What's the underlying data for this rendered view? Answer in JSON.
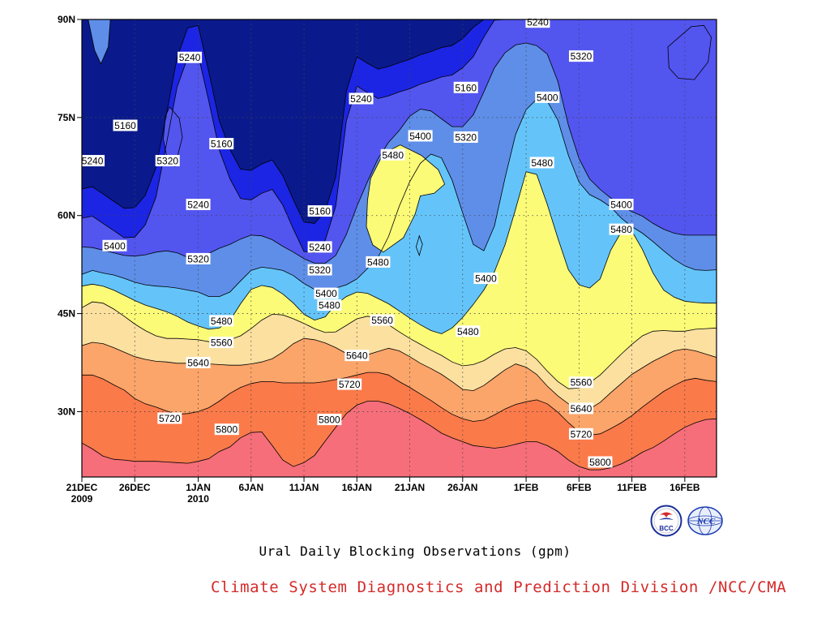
{
  "chart_data": {
    "type": "filled-contour",
    "title": "Ural Daily Blocking Observations (gpm)",
    "credit": "Climate System Diagnostics and Prediction Division /NCC/CMA",
    "credit_color": "#d42a2a",
    "x_ticks": [
      {
        "label": "21DEC",
        "sub": "2009"
      },
      {
        "label": "26DEC",
        "sub": ""
      },
      {
        "label": "1JAN",
        "sub": "2010"
      },
      {
        "label": "6JAN",
        "sub": ""
      },
      {
        "label": "11JAN",
        "sub": ""
      },
      {
        "label": "16JAN",
        "sub": ""
      },
      {
        "label": "21JAN",
        "sub": ""
      },
      {
        "label": "26JAN",
        "sub": ""
      },
      {
        "label": "1FEB",
        "sub": ""
      },
      {
        "label": "6FEB",
        "sub": ""
      },
      {
        "label": "11FEB",
        "sub": ""
      },
      {
        "label": "16FEB",
        "sub": ""
      }
    ],
    "y_ticks": [
      "90N",
      "75N",
      "60N",
      "45N",
      "30N"
    ],
    "x_days": [
      0,
      5,
      11,
      16,
      21,
      26,
      31,
      36,
      42,
      47,
      52,
      57
    ],
    "y_lats": [
      90,
      75,
      60,
      45,
      30
    ],
    "xlim_days": [
      0,
      60
    ],
    "ylim_lat": [
      20,
      90
    ],
    "grid": "dotted",
    "levels": [
      5240,
      5320,
      5400,
      5480,
      5560,
      5640,
      5720,
      5800
    ],
    "fill_colors": [
      "#0a1a8c",
      "#1c25e3",
      "#5355ef",
      "#5e8ee8",
      "#64c4fa",
      "#fbfb78",
      "#fbe0a0",
      "#fba56a",
      "#fb7a4a",
      "#f56e7a"
    ],
    "bands": [
      {
        "level": 5800,
        "lat": [
          25.2,
          24.3,
          23.2,
          22.7,
          22.6,
          22.4,
          22.4,
          22.4,
          22.3,
          22.2,
          22.1,
          22.4,
          22.8,
          23.9,
          24.6,
          26.0,
          26.8,
          26.9,
          24.8,
          22.6,
          21.6,
          22.2,
          23.3,
          25.5,
          27.6,
          29.7,
          31.0,
          31.6,
          31.6,
          31.2,
          30.5,
          29.7,
          28.8,
          27.8,
          26.7,
          26.0,
          25.4,
          24.8,
          24.6,
          24.4,
          24.6,
          25.0,
          25.4,
          25.4,
          24.8,
          23.9,
          22.6,
          21.6,
          21.1,
          21.1,
          21.4,
          22.0,
          22.8,
          23.8,
          24.5,
          25.5,
          26.6,
          27.6,
          28.3,
          28.8,
          28.9
        ]
      },
      {
        "level": 5720,
        "lat": [
          35.6,
          35.6,
          35.0,
          34.1,
          33.3,
          32.0,
          31.2,
          30.7,
          30.1,
          29.6,
          29.7,
          30.0,
          30.6,
          31.6,
          32.8,
          33.7,
          34.3,
          34.6,
          34.6,
          34.4,
          34.4,
          34.4,
          34.4,
          34.6,
          34.9,
          35.2,
          35.6,
          36.0,
          36.0,
          35.6,
          34.6,
          33.7,
          32.7,
          31.7,
          30.6,
          29.6,
          28.9,
          28.5,
          28.7,
          29.5,
          30.4,
          31.1,
          31.5,
          31.8,
          31.2,
          29.9,
          28.3,
          26.9,
          26.4,
          26.6,
          27.4,
          28.3,
          29.4,
          30.7,
          31.9,
          33.1,
          34.0,
          34.8,
          35.1,
          34.8,
          34.6
        ]
      },
      {
        "level": 5640,
        "lat": [
          40.1,
          40.6,
          40.4,
          39.8,
          39.1,
          38.4,
          38.0,
          37.7,
          37.6,
          37.4,
          37.4,
          37.4,
          37.3,
          37.2,
          37.1,
          37.1,
          37.3,
          37.6,
          38.1,
          39.1,
          40.4,
          41.2,
          41.0,
          40.5,
          39.8,
          38.9,
          38.4,
          38.7,
          39.2,
          39.7,
          39.3,
          38.4,
          37.4,
          36.6,
          35.7,
          34.6,
          33.4,
          33.2,
          34.0,
          35.2,
          36.4,
          37.3,
          36.8,
          35.7,
          33.9,
          32.4,
          31.2,
          30.4,
          30.4,
          31.4,
          32.9,
          34.3,
          35.7,
          36.7,
          37.7,
          38.5,
          39.3,
          39.6,
          39.3,
          38.8,
          38.3
        ]
      },
      {
        "level": 5560,
        "lat": [
          45.9,
          46.8,
          46.6,
          45.7,
          44.6,
          43.4,
          42.4,
          41.6,
          41.2,
          41.2,
          41.1,
          41.0,
          40.7,
          40.7,
          41.0,
          41.6,
          42.7,
          44.0,
          44.9,
          44.8,
          44.2,
          43.5,
          42.7,
          42.1,
          42.2,
          43.2,
          44.2,
          44.6,
          44.3,
          43.3,
          42.2,
          41.2,
          40.3,
          39.4,
          38.6,
          37.6,
          37.0,
          37.2,
          37.8,
          38.8,
          39.6,
          39.8,
          39.3,
          38.0,
          36.2,
          34.6,
          33.5,
          33.6,
          34.4,
          35.6,
          37.2,
          38.8,
          40.3,
          41.6,
          42.3,
          42.4,
          42.3,
          42.3,
          42.6,
          42.7,
          42.8
        ]
      },
      {
        "level": 5480,
        "lat": [
          49.2,
          49.5,
          49.2,
          48.6,
          47.8,
          47.0,
          46.3,
          45.8,
          45.3,
          44.6,
          43.7,
          43.1,
          42.6,
          42.8,
          43.9,
          46.5,
          48.7,
          49.3,
          49.0,
          48.0,
          46.6,
          44.9,
          44.0,
          44.5,
          46.4,
          47.6,
          48.3,
          48.1,
          47.3,
          46.5,
          45.4,
          44.3,
          43.3,
          42.4,
          41.9,
          42.8,
          44.4,
          46.4,
          48.6,
          51.4,
          55.5,
          61.0,
          66.7,
          66.3,
          61.7,
          56.5,
          51.7,
          49.4,
          48.9,
          50.3,
          54.7,
          57.5,
          57.6,
          54.8,
          51.2,
          48.6,
          47.5,
          46.9,
          46.7,
          46.6,
          46.6
        ]
      },
      {
        "level": 5400,
        "lat": [
          51.0,
          51.6,
          51.2,
          50.9,
          50.4,
          49.8,
          49.4,
          49.2,
          49.1,
          48.9,
          48.6,
          48.3,
          47.6,
          47.6,
          48.3,
          50.0,
          51.6,
          52.1,
          51.9,
          51.6,
          50.8,
          49.6,
          48.7,
          48.6,
          48.9,
          49.4,
          50.3,
          51.9,
          53.6,
          56.8,
          61.4,
          65.2,
          68.0,
          69.4,
          68.8,
          65.4,
          60.4,
          55.6,
          54.6,
          58.4,
          65.7,
          72.4,
          76.2,
          77.8,
          77.5,
          74.6,
          69.2,
          65.1,
          63.2,
          62.4,
          61.3,
          59.6,
          58.3,
          57.3,
          56.0,
          54.6,
          53.3,
          52.3,
          51.7,
          51.6,
          51.7
        ]
      },
      {
        "level": 5320,
        "lat": [
          55.2,
          55.1,
          54.7,
          54.3,
          53.9,
          53.8,
          54.0,
          54.4,
          54.6,
          54.3,
          53.6,
          53.3,
          54.2,
          55.0,
          55.6,
          56.4,
          57.0,
          56.9,
          56.3,
          55.3,
          54.4,
          53.4,
          52.7,
          52.7,
          53.9,
          57.1,
          61.4,
          65.2,
          68.7,
          71.2,
          73.0,
          75.2,
          76.3,
          76.0,
          74.8,
          73.6,
          73.6,
          75.4,
          78.9,
          82.6,
          84.9,
          86.1,
          86.4,
          86.0,
          84.7,
          80.5,
          73.8,
          68.7,
          65.6,
          64.0,
          62.7,
          61.5,
          60.6,
          59.9,
          58.8,
          57.9,
          57.3,
          57.0,
          57.0,
          57.0,
          57.0
        ]
      },
      {
        "level": 5240,
        "lat": [
          59.6,
          59.9,
          58.8,
          57.7,
          56.6,
          56.7,
          58.6,
          62.8,
          71.0,
          79.6,
          84.2,
          84.6,
          77.5,
          70.0,
          65.6,
          62.6,
          62.4,
          63.4,
          64.0,
          61.6,
          57.9,
          54.5,
          54.3,
          56.2,
          61.4,
          74.5,
          79.8,
          78.8,
          77.9,
          78.3,
          78.9,
          79.4,
          80.1,
          80.6,
          81.2,
          81.5,
          82.6,
          84.3,
          87.3,
          89.9,
          90.0,
          90.0,
          90.0,
          90.0,
          90.0,
          90.0,
          90.0,
          90.0,
          90.0,
          90.0,
          90.0,
          90.0,
          90.0,
          90.0,
          90.0,
          90.0,
          90.0,
          90.0,
          90.0,
          90.0,
          90.0
        ]
      }
    ],
    "annotations": [
      {
        "text": "5800",
        "day": 23.4,
        "lat": 28.8
      },
      {
        "text": "5800",
        "day": 13.7,
        "lat": 27.3
      },
      {
        "text": "5800",
        "day": 49.0,
        "lat": 22.3
      },
      {
        "text": "5720",
        "day": 8.3,
        "lat": 29.0
      },
      {
        "text": "5720",
        "day": 25.3,
        "lat": 34.2
      },
      {
        "text": "5720",
        "day": 47.2,
        "lat": 26.6
      },
      {
        "text": "5640",
        "day": 11.0,
        "lat": 37.5
      },
      {
        "text": "5640",
        "day": 26.0,
        "lat": 38.6
      },
      {
        "text": "5640",
        "day": 47.2,
        "lat": 30.5
      },
      {
        "text": "5560",
        "day": 13.2,
        "lat": 40.6
      },
      {
        "text": "5560",
        "day": 28.4,
        "lat": 44.0
      },
      {
        "text": "5560",
        "day": 47.2,
        "lat": 34.5
      },
      {
        "text": "5480",
        "day": 13.2,
        "lat": 43.9
      },
      {
        "text": "5480",
        "day": 23.4,
        "lat": 46.3
      },
      {
        "text": "5480",
        "day": 36.5,
        "lat": 42.3
      },
      {
        "text": "5480",
        "day": 28.0,
        "lat": 52.9
      },
      {
        "text": "5480",
        "day": 29.4,
        "lat": 69.3
      },
      {
        "text": "5480",
        "day": 43.5,
        "lat": 68.1
      },
      {
        "text": "5480",
        "day": 51.0,
        "lat": 57.9
      },
      {
        "text": "5400",
        "day": 3.1,
        "lat": 55.4
      },
      {
        "text": "5400",
        "day": 23.1,
        "lat": 48.1
      },
      {
        "text": "5400",
        "day": 32.0,
        "lat": 72.2
      },
      {
        "text": "5400",
        "day": 38.2,
        "lat": 50.4
      },
      {
        "text": "5400",
        "day": 44.0,
        "lat": 78.1
      },
      {
        "text": "5400",
        "day": 51.0,
        "lat": 61.7
      },
      {
        "text": "5320",
        "day": 8.1,
        "lat": 68.4
      },
      {
        "text": "5320",
        "day": 11.0,
        "lat": 53.4
      },
      {
        "text": "5320",
        "day": 22.5,
        "lat": 51.7
      },
      {
        "text": "5320",
        "day": 36.3,
        "lat": 72.0
      },
      {
        "text": "5320",
        "day": 47.2,
        "lat": 84.4
      },
      {
        "text": "5240",
        "day": 10.2,
        "lat": 84.2
      },
      {
        "text": "5240",
        "day": 1.0,
        "lat": 68.4
      },
      {
        "text": "5240",
        "day": 11.0,
        "lat": 61.7
      },
      {
        "text": "5240",
        "day": 22.5,
        "lat": 55.2
      },
      {
        "text": "5240",
        "day": 26.4,
        "lat": 77.9
      },
      {
        "text": "5240",
        "day": 43.1,
        "lat": 89.6
      },
      {
        "text": "5160",
        "day": 4.1,
        "lat": 73.8
      },
      {
        "text": "5160",
        "day": 13.2,
        "lat": 71.0
      },
      {
        "text": "5160",
        "day": 22.5,
        "lat": 60.7
      },
      {
        "text": "5160",
        "day": 36.3,
        "lat": 79.6
      }
    ],
    "lows": [
      {
        "fill": "#5355ef",
        "points": [
          [
            8.3,
            76.6
          ],
          [
            9.2,
            74.9
          ],
          [
            9.5,
            72.0
          ],
          [
            8.8,
            67.5
          ],
          [
            8.1,
            68.4
          ],
          [
            7.7,
            71.7
          ],
          [
            7.9,
            75.2
          ]
        ]
      },
      {
        "fill": "#5e8ee8",
        "points": [
          [
            0.6,
            90.0
          ],
          [
            2.7,
            90.0
          ],
          [
            2.5,
            85.8
          ],
          [
            1.8,
            83.2
          ],
          [
            1.2,
            85.3
          ]
        ]
      },
      {
        "fill": "#5355ef",
        "points": [
          [
            55.4,
            85.8
          ],
          [
            57.6,
            88.9
          ],
          [
            58.8,
            89.1
          ],
          [
            59.5,
            87.3
          ],
          [
            59.2,
            83.5
          ],
          [
            57.9,
            80.8
          ],
          [
            56.4,
            81.0
          ],
          [
            55.5,
            82.6
          ]
        ]
      },
      {
        "fill": "#64c4fa",
        "points": [
          [
            31.9,
            56.9
          ],
          [
            32.2,
            55.6
          ],
          [
            31.9,
            53.9
          ],
          [
            31.6,
            55.2
          ]
        ]
      }
    ],
    "yellow_core": [
      [
        27.3,
        65.7
      ],
      [
        28.5,
        69.5
      ],
      [
        30.1,
        70.8
      ],
      [
        32.1,
        69.2
      ],
      [
        33.7,
        67.0
      ],
      [
        34.3,
        64.8
      ],
      [
        33.3,
        63.4
      ],
      [
        32.0,
        63.0
      ],
      [
        31.5,
        60.2
      ],
      [
        30.4,
        56.6
      ],
      [
        28.5,
        54.4
      ],
      [
        27.5,
        55.5
      ],
      [
        26.9,
        58.3
      ],
      [
        27.0,
        62.3
      ]
    ]
  },
  "logos": [
    {
      "name": "bcc-logo",
      "text": "BCC",
      "color": "#1a2e9a"
    },
    {
      "name": "ncc-logo",
      "text": "NCC",
      "color": "#1a3ab0"
    }
  ]
}
